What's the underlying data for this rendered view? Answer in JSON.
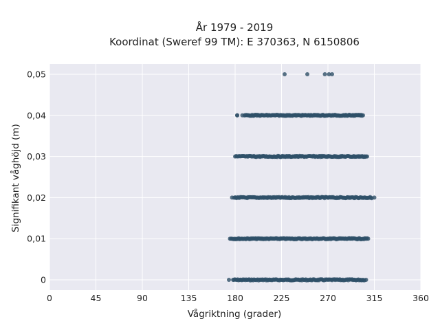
{
  "chart_data": {
    "type": "scatter",
    "title_line1": "År 1979 - 2019",
    "title_line2": "Koordinat (Sweref 99 TM): E 370363, N 6150806",
    "xlabel": "Vågriktning (grader)",
    "ylabel": "Signifikant våghöjd (m)",
    "xlim": [
      0,
      360
    ],
    "ylim": [
      -0.0025,
      0.0525
    ],
    "x_ticks": [
      0,
      45,
      90,
      135,
      180,
      225,
      270,
      315,
      360
    ],
    "x_tick_labels": [
      "0",
      "45",
      "90",
      "135",
      "180",
      "225",
      "270",
      "315",
      "360"
    ],
    "y_ticks": [
      0,
      0.01,
      0.02,
      0.03,
      0.04,
      0.05
    ],
    "y_tick_labels": [
      "0",
      "0,01",
      "0,02",
      "0,03",
      "0,04",
      "0,05"
    ],
    "grid": true,
    "background_color": "#e9e9f1",
    "grid_color": "#ffffff",
    "point_color": "#2f5068",
    "bands": [
      {
        "y": 0.0,
        "x_min": 174,
        "x_max": 307,
        "dense_from": 178,
        "dense_to": 306
      },
      {
        "y": 0.01,
        "x_min": 175,
        "x_max": 309,
        "dense_from": 176,
        "dense_to": 308
      },
      {
        "y": 0.02,
        "x_min": 177,
        "x_max": 315,
        "dense_from": 179,
        "dense_to": 313
      },
      {
        "y": 0.03,
        "x_min": 180,
        "x_max": 308,
        "dense_from": 181,
        "dense_to": 307
      },
      {
        "y": 0.04,
        "x_min": 182,
        "x_max": 304,
        "dense_from": 189,
        "dense_to": 303
      }
    ],
    "sparse_points": [
      {
        "x": 182,
        "y": 0.04
      },
      {
        "x": 187,
        "y": 0.04
      },
      {
        "x": 228,
        "y": 0.05
      },
      {
        "x": 250,
        "y": 0.05
      },
      {
        "x": 267,
        "y": 0.05
      },
      {
        "x": 271,
        "y": 0.05
      },
      {
        "x": 274,
        "y": 0.05
      }
    ]
  }
}
